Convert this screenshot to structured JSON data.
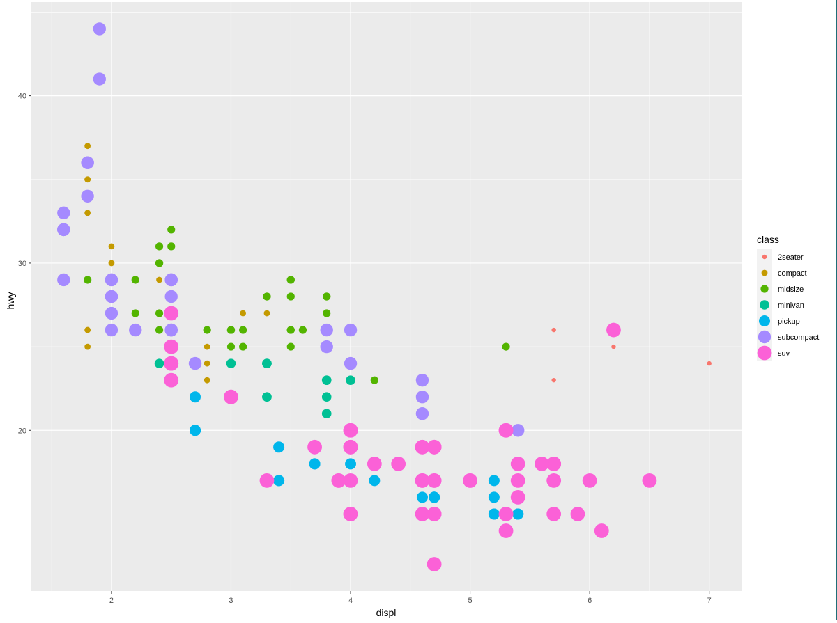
{
  "chart_data": {
    "type": "scatter",
    "title": "",
    "xlabel": "displ",
    "ylabel": "hwy",
    "xlim": [
      1.33,
      7.27
    ],
    "ylim": [
      10.4,
      45.6
    ],
    "x_ticks": [
      2,
      3,
      4,
      5,
      6,
      7
    ],
    "y_ticks": [
      20,
      30,
      40
    ],
    "x_tick_labels": [
      "2",
      "3",
      "4",
      "5",
      "6",
      "7"
    ],
    "y_tick_labels": [
      "20",
      "30",
      "40"
    ],
    "grid": true,
    "legend": {
      "title": "class",
      "placement": "right",
      "entries": [
        "2seater",
        "compact",
        "midsize",
        "minivan",
        "pickup",
        "subcompact",
        "suv"
      ]
    },
    "size_mapping": "class",
    "colors": {
      "2seater": "#F8766D",
      "compact": "#C49A00",
      "midsize": "#53B400",
      "minivan": "#00C094",
      "pickup": "#00B6EB",
      "subcompact": "#A58AFF",
      "suv": "#FB61D7"
    },
    "series": [
      {
        "name": "2seater",
        "points": [
          [
            5.7,
            26
          ],
          [
            5.7,
            23
          ],
          [
            6.2,
            26
          ],
          [
            6.2,
            25
          ],
          [
            7.0,
            24
          ]
        ]
      },
      {
        "name": "compact",
        "points": [
          [
            1.8,
            29
          ],
          [
            1.8,
            29
          ],
          [
            2.0,
            31
          ],
          [
            2.0,
            30
          ],
          [
            2.8,
            26
          ],
          [
            2.8,
            26
          ],
          [
            3.1,
            27
          ],
          [
            1.8,
            26
          ],
          [
            1.8,
            25
          ],
          [
            2.0,
            28
          ],
          [
            2.0,
            29
          ],
          [
            2.8,
            24
          ],
          [
            2.8,
            25
          ],
          [
            3.1,
            25
          ],
          [
            2.2,
            27
          ],
          [
            2.2,
            29
          ],
          [
            2.4,
            31
          ],
          [
            2.4,
            31
          ],
          [
            3.0,
            26
          ],
          [
            1.8,
            33
          ],
          [
            1.8,
            35
          ],
          [
            1.8,
            37
          ],
          [
            1.8,
            35
          ],
          [
            1.8,
            29
          ],
          [
            2.0,
            29
          ],
          [
            2.5,
            25
          ],
          [
            2.5,
            27
          ],
          [
            2.4,
            29
          ],
          [
            2.4,
            27
          ],
          [
            3.3,
            27
          ],
          [
            2.8,
            23
          ],
          [
            2.0,
            29
          ],
          [
            2.0,
            26
          ]
        ]
      },
      {
        "name": "midsize",
        "points": [
          [
            2.4,
            30
          ],
          [
            2.4,
            26
          ],
          [
            3.1,
            26
          ],
          [
            3.5,
            29
          ],
          [
            3.6,
            26
          ],
          [
            2.4,
            27
          ],
          [
            3.0,
            25
          ],
          [
            3.3,
            28
          ],
          [
            3.3,
            28
          ],
          [
            3.5,
            29
          ],
          [
            3.5,
            28
          ],
          [
            3.8,
            26
          ],
          [
            3.8,
            28
          ],
          [
            3.8,
            27
          ],
          [
            3.8,
            28
          ],
          [
            4.0,
            23
          ],
          [
            4.2,
            23
          ],
          [
            5.3,
            25
          ],
          [
            2.2,
            27
          ],
          [
            2.2,
            29
          ],
          [
            2.4,
            31
          ],
          [
            2.4,
            30
          ],
          [
            3.0,
            26
          ],
          [
            3.0,
            26
          ],
          [
            3.5,
            26
          ],
          [
            2.5,
            32
          ],
          [
            2.5,
            31
          ],
          [
            2.5,
            26
          ],
          [
            2.5,
            27
          ],
          [
            3.5,
            25
          ],
          [
            3.5,
            26
          ],
          [
            1.8,
            29
          ],
          [
            2.0,
            29
          ],
          [
            2.8,
            26
          ],
          [
            3.1,
            25
          ],
          [
            2.0,
            28
          ],
          [
            3.0,
            26
          ]
        ]
      },
      {
        "name": "minivan",
        "points": [
          [
            2.4,
            24
          ],
          [
            3.0,
            24
          ],
          [
            3.3,
            22
          ],
          [
            3.3,
            22
          ],
          [
            3.3,
            24
          ],
          [
            3.3,
            24
          ],
          [
            3.3,
            24
          ],
          [
            3.8,
            22
          ],
          [
            3.8,
            21
          ],
          [
            3.8,
            23
          ],
          [
            3.8,
            23
          ],
          [
            4.0,
            23
          ]
        ]
      },
      {
        "name": "pickup",
        "points": [
          [
            2.7,
            20
          ],
          [
            2.7,
            20
          ],
          [
            2.7,
            22
          ],
          [
            3.4,
            17
          ],
          [
            3.4,
            19
          ],
          [
            4.0,
            18
          ],
          [
            4.0,
            20
          ],
          [
            4.7,
            17
          ],
          [
            4.7,
            16
          ],
          [
            4.7,
            16
          ],
          [
            5.2,
            17
          ],
          [
            5.2,
            15
          ],
          [
            5.9,
            15
          ],
          [
            4.7,
            16
          ],
          [
            5.2,
            16
          ],
          [
            5.7,
            17
          ],
          [
            5.9,
            15
          ],
          [
            3.7,
            18
          ],
          [
            4.7,
            16
          ],
          [
            4.7,
            16
          ],
          [
            5.2,
            15
          ],
          [
            5.7,
            17
          ],
          [
            5.4,
            15
          ],
          [
            5.4,
            15
          ],
          [
            5.4,
            15
          ],
          [
            3.4,
            17
          ],
          [
            2.7,
            20
          ],
          [
            3.7,
            18
          ],
          [
            4.0,
            20
          ],
          [
            4.2,
            17
          ],
          [
            4.6,
            17
          ],
          [
            4.6,
            16
          ],
          [
            4.6,
            17
          ]
        ]
      },
      {
        "name": "subcompact",
        "points": [
          [
            3.8,
            26
          ],
          [
            3.8,
            25
          ],
          [
            4.0,
            26
          ],
          [
            4.0,
            24
          ],
          [
            4.6,
            21
          ],
          [
            4.6,
            22
          ],
          [
            4.6,
            23
          ],
          [
            5.4,
            20
          ],
          [
            1.6,
            33
          ],
          [
            1.6,
            32
          ],
          [
            1.6,
            32
          ],
          [
            1.6,
            29
          ],
          [
            1.6,
            32
          ],
          [
            1.8,
            34
          ],
          [
            1.8,
            36
          ],
          [
            1.8,
            36
          ],
          [
            2.0,
            29
          ],
          [
            2.0,
            26
          ],
          [
            2.0,
            27
          ],
          [
            2.0,
            28
          ],
          [
            2.0,
            29
          ],
          [
            2.0,
            28
          ],
          [
            2.5,
            26
          ],
          [
            2.5,
            26
          ],
          [
            2.5,
            27
          ],
          [
            2.5,
            29
          ],
          [
            2.5,
            28
          ],
          [
            2.5,
            27
          ],
          [
            2.5,
            29
          ],
          [
            2.5,
            26
          ],
          [
            2.2,
            26
          ],
          [
            2.5,
            26
          ],
          [
            2.7,
            24
          ],
          [
            1.9,
            44
          ],
          [
            1.9,
            41
          ],
          [
            2.5,
            29
          ]
        ]
      },
      {
        "name": "suv",
        "points": [
          [
            5.3,
            20
          ],
          [
            5.3,
            15
          ],
          [
            5.3,
            20
          ],
          [
            5.7,
            17
          ],
          [
            6.0,
            17
          ],
          [
            5.7,
            15
          ],
          [
            5.7,
            18
          ],
          [
            6.2,
            26
          ],
          [
            6.5,
            17
          ],
          [
            3.7,
            19
          ],
          [
            3.9,
            17
          ],
          [
            4.7,
            12
          ],
          [
            4.7,
            17
          ],
          [
            4.7,
            15
          ],
          [
            4.7,
            19
          ],
          [
            5.7,
            18
          ],
          [
            5.9,
            15
          ],
          [
            4.0,
            17
          ],
          [
            4.0,
            19
          ],
          [
            4.6,
            19
          ],
          [
            4.6,
            17
          ],
          [
            5.0,
            17
          ],
          [
            4.2,
            18
          ],
          [
            4.4,
            18
          ],
          [
            4.6,
            15
          ],
          [
            5.4,
            17
          ],
          [
            5.4,
            18
          ],
          [
            5.4,
            16
          ],
          [
            4.0,
            19
          ],
          [
            4.0,
            20
          ],
          [
            4.6,
            17
          ],
          [
            5.0,
            17
          ],
          [
            3.3,
            17
          ],
          [
            3.9,
            17
          ],
          [
            4.0,
            15
          ],
          [
            4.7,
            15
          ],
          [
            4.7,
            17
          ],
          [
            4.7,
            19
          ],
          [
            5.3,
            14
          ],
          [
            5.3,
            15
          ],
          [
            5.6,
            18
          ],
          [
            6.1,
            14
          ],
          [
            2.5,
            25
          ],
          [
            2.5,
            24
          ],
          [
            2.5,
            27
          ],
          [
            2.5,
            23
          ],
          [
            2.5,
            24
          ],
          [
            3.0,
            22
          ],
          [
            3.0,
            22
          ],
          [
            4.0,
            20
          ],
          [
            4.0,
            19
          ],
          [
            4.0,
            15
          ],
          [
            4.6,
            19
          ]
        ]
      }
    ]
  }
}
